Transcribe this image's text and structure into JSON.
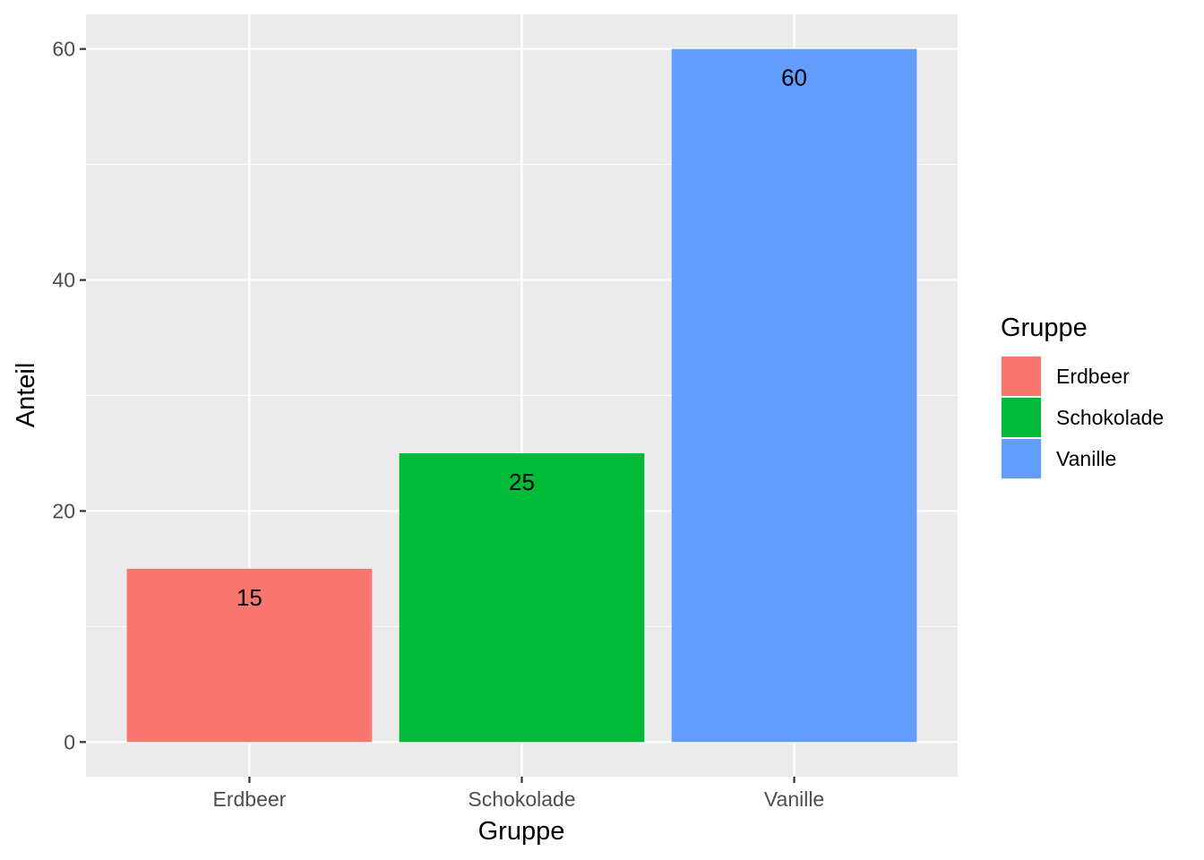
{
  "chart_data": {
    "type": "bar",
    "categories": [
      "Erdbeer",
      "Schokolade",
      "Vanille"
    ],
    "values": [
      15,
      25,
      60
    ],
    "data_labels": [
      "15",
      "25",
      "60"
    ],
    "colors": [
      "#F8766D",
      "#00BA38",
      "#619CFF"
    ],
    "xlabel": "Gruppe",
    "ylabel": "Anteil",
    "ylim": [
      -3,
      63
    ],
    "yticks": [
      0,
      20,
      40,
      60
    ],
    "y_minor_ticks": [
      10,
      30,
      50
    ],
    "grid": true,
    "panel_background": "#EBEBEB",
    "grid_color": "#FFFFFF",
    "legend": {
      "title": "Gruppe",
      "position": "right",
      "entries": [
        "Erdbeer",
        "Schokolade",
        "Vanille"
      ]
    }
  }
}
